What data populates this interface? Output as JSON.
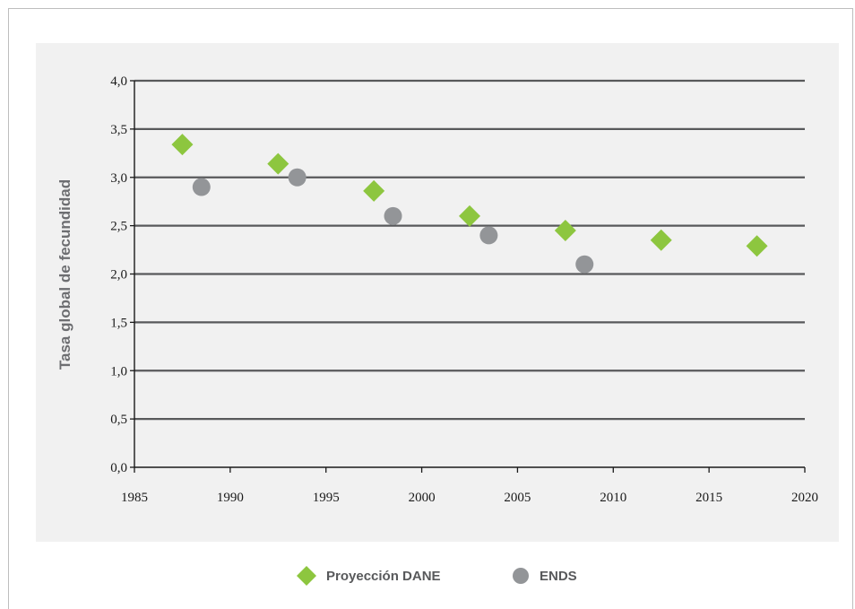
{
  "chart_data": {
    "type": "scatter",
    "title": "",
    "xlabel": "",
    "ylabel": "Tasa global de fecundidad",
    "xlim": [
      1985,
      2020
    ],
    "ylim": [
      0.0,
      4.0
    ],
    "x_ticks": [
      "1985",
      "1990",
      "1995",
      "2000",
      "2005",
      "2010",
      "2015",
      "2020"
    ],
    "y_ticks": [
      "0,0",
      "0,5",
      "1,0",
      "1,5",
      "2,0",
      "2,5",
      "3,0",
      "3,5",
      "4,0"
    ],
    "grid": "horizontal",
    "legend_position": "bottom-center",
    "series": [
      {
        "name": "Proyección DANE",
        "marker": "diamond",
        "color": "#8dc63f",
        "points": [
          {
            "x": 1987.5,
            "y": 3.34
          },
          {
            "x": 1992.5,
            "y": 3.14
          },
          {
            "x": 1997.5,
            "y": 2.86
          },
          {
            "x": 2002.5,
            "y": 2.6
          },
          {
            "x": 2007.5,
            "y": 2.45
          },
          {
            "x": 2012.5,
            "y": 2.35
          },
          {
            "x": 2017.5,
            "y": 2.29
          }
        ]
      },
      {
        "name": "ENDS",
        "marker": "circle",
        "color": "#939598",
        "points": [
          {
            "x": 1988.5,
            "y": 2.9
          },
          {
            "x": 1993.5,
            "y": 3.0
          },
          {
            "x": 1998.5,
            "y": 2.6
          },
          {
            "x": 2003.5,
            "y": 2.4
          },
          {
            "x": 2008.5,
            "y": 2.1
          }
        ]
      }
    ]
  },
  "colors": {
    "axis": "#1a1a1a",
    "grid": "#58595b",
    "plot_background": "#f1f1f1",
    "ylabel": "#6d6e71",
    "legend_text": "#58595b"
  }
}
